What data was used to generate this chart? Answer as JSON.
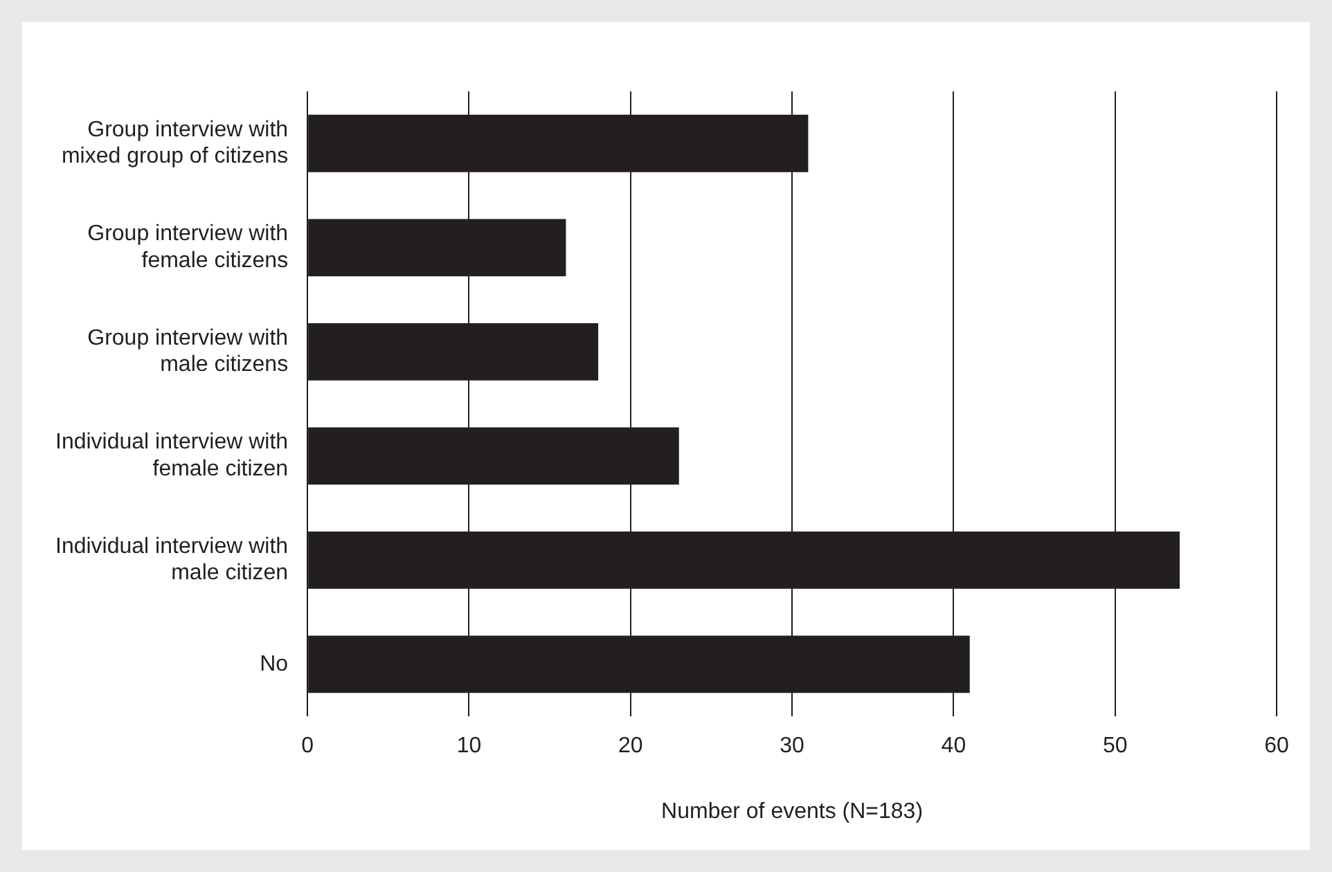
{
  "chart_data": {
    "type": "bar",
    "orientation": "horizontal",
    "xlabel": "Number of events (N=183)",
    "categories": [
      "Group interview with\nmixed group of citizens",
      "Group interview with\nfemale citizens",
      "Group interview with\nmale citizens",
      "Individual interview with\nfemale citizen",
      "Individual interview with\nmale citizen",
      "No"
    ],
    "values": [
      31,
      16,
      18,
      23,
      54,
      41
    ],
    "color": "#231f20",
    "xlim": [
      0,
      60
    ],
    "xticks": [
      0,
      10,
      20,
      30,
      40,
      50,
      60
    ],
    "grid": "x",
    "legend": false
  }
}
